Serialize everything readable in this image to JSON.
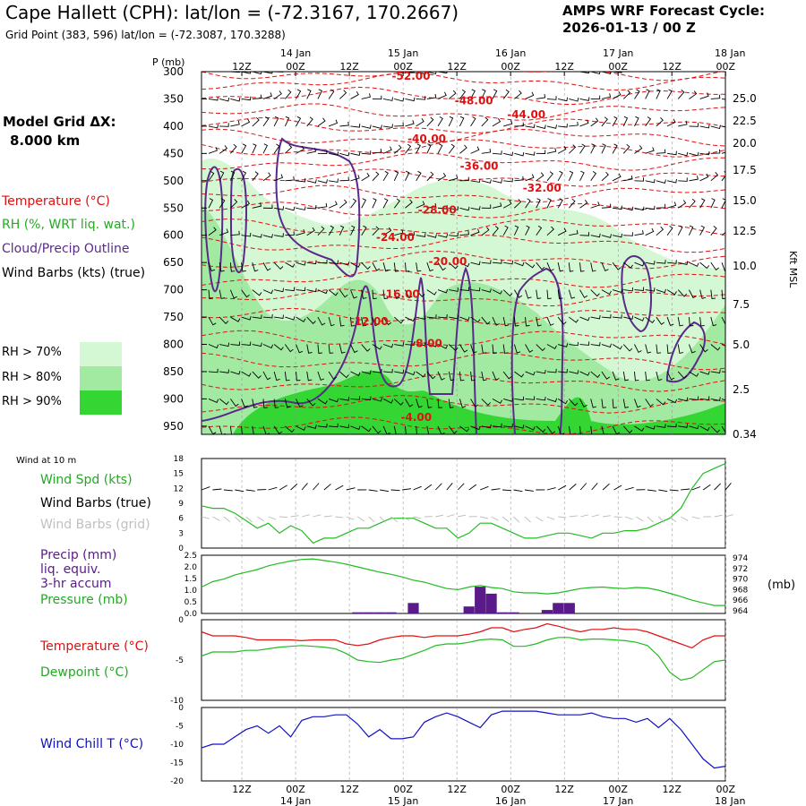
{
  "header": {
    "title": "Cape Hallett (CPH):  lat/lon = (-72.3167, 170.2667)",
    "subtitle": "Grid Point (383, 596) lat/lon = (-72.3087, 170.3288)",
    "cycle_line1": "AMPS WRF Forecast Cycle:",
    "cycle_line2": "2026-01-13 / 00  Z"
  },
  "model_grid": {
    "label": "Model Grid ΔX:",
    "value": "8.000 km"
  },
  "legend": {
    "temperature": "Temperature (°C)",
    "rh": "RH (%, WRT liq. wat.)",
    "cloud": "Cloud/Precip Outline",
    "wind": "Wind Barbs (kts) (true)",
    "rh_levels": [
      {
        "label": "RH > 70%",
        "color": "#d4f8d4"
      },
      {
        "label": "RH > 80%",
        "color": "#a2eaa2"
      },
      {
        "label": "RH > 90%",
        "color": "#34d634"
      }
    ]
  },
  "time_axis": {
    "hours": [
      "12Z",
      "00Z",
      "12Z",
      "00Z",
      "12Z",
      "00Z",
      "12Z",
      "00Z",
      "12Z",
      "00Z"
    ],
    "dates": [
      "14 Jan",
      "15 Jan",
      "16 Jan",
      "17 Jan",
      "18 Jan"
    ]
  },
  "colors": {
    "temp": "#e01010",
    "rh": "#22bb22",
    "cloud": "#5a2a8a",
    "precip": "#5a1a8a",
    "windchill": "#1010c0"
  },
  "chart_data": [
    {
      "type": "heatmap",
      "name": "cross-section",
      "ylabel": "P (mb)",
      "y2label": "Kft MSL",
      "pressure_ticks": [
        "300",
        "350",
        "400",
        "450",
        "500",
        "550",
        "600",
        "650",
        "700",
        "750",
        "800",
        "850",
        "900",
        "950"
      ],
      "height_ticks": [
        "25.0",
        "22.5",
        "20.0",
        "17.5",
        "15.0",
        "12.5",
        "10.0",
        "7.5",
        "5.0",
        "2.5",
        "0.34"
      ],
      "temperature_labels": [
        {
          "text": "-52.00",
          "t": 0.4,
          "p": 315
        },
        {
          "text": "-48.00",
          "t": 0.52,
          "p": 360
        },
        {
          "text": "-44.00",
          "t": 0.62,
          "p": 385
        },
        {
          "text": "-40.00",
          "t": 0.43,
          "p": 430
        },
        {
          "text": "-36.00",
          "t": 0.53,
          "p": 480
        },
        {
          "text": "-32.00",
          "t": 0.65,
          "p": 520
        },
        {
          "text": "-28.00",
          "t": 0.45,
          "p": 560
        },
        {
          "text": "-24.00",
          "t": 0.37,
          "p": 610
        },
        {
          "text": "-20.00",
          "t": 0.47,
          "p": 655
        },
        {
          "text": "-16.00",
          "t": 0.38,
          "p": 715
        },
        {
          "text": "-12.00",
          "t": 0.32,
          "p": 765
        },
        {
          "text": "-8.00",
          "t": 0.43,
          "p": 805
        },
        {
          "text": "-4.00",
          "t": 0.41,
          "p": 940
        }
      ]
    },
    {
      "type": "line",
      "name": "wind10m",
      "label": "Wind at 10 m",
      "series_label": "Wind Spd (kts)",
      "barbs_true": "Wind Barbs (true)",
      "barbs_grid": "Wind Barbs (grid)",
      "y_ticks": [
        "18",
        "15",
        "12",
        "9",
        "6",
        "3",
        "0"
      ],
      "ylim": [
        0,
        18
      ],
      "values": [
        8.5,
        8,
        8,
        7,
        5.5,
        4,
        5,
        3,
        4.5,
        3.5,
        1,
        2,
        2,
        3,
        4,
        4,
        5,
        6,
        6,
        6,
        5,
        4,
        4,
        2,
        3,
        5,
        5,
        4,
        3,
        2,
        2,
        2.5,
        3,
        3,
        2.5,
        2,
        3,
        3,
        3.5,
        3.5,
        4,
        5,
        6,
        8,
        12,
        15,
        16,
        17
      ]
    },
    {
      "type": "bar",
      "name": "precip-pressure",
      "precip_label1": "Precip (mm)",
      "precip_label2": "liq. equiv.",
      "precip_label3": "3-hr accum",
      "pressure_label": "Pressure (mb)",
      "y_ticks": [
        "2.5",
        "2.0",
        "1.5",
        "1.0",
        "0.5",
        "0.0"
      ],
      "ylim": [
        0,
        2.5
      ],
      "y2_ticks": [
        "974",
        "972",
        "970",
        "968",
        "966",
        "964"
      ],
      "y2lim": [
        963.5,
        974.5
      ],
      "y2_unit": "(mb)",
      "precip": [
        0,
        0,
        0,
        0,
        0,
        0,
        0,
        0,
        0,
        0,
        0,
        0,
        0,
        0,
        0.05,
        0.05,
        0.05,
        0.05,
        0,
        0.45,
        0,
        0,
        0,
        0,
        0.3,
        1.15,
        0.85,
        0.05,
        0.05,
        0,
        0,
        0.15,
        0.45,
        0.45,
        0,
        0,
        0,
        0,
        0,
        0,
        0,
        0,
        0,
        0,
        0,
        0,
        0,
        0
      ],
      "pressure": [
        968.5,
        969.5,
        970,
        970.8,
        971.3,
        971.8,
        972.5,
        973,
        973.4,
        973.7,
        973.8,
        973.5,
        973.2,
        972.8,
        972.3,
        971.8,
        971.3,
        970.9,
        970.4,
        969.8,
        969.4,
        968.8,
        968.2,
        968,
        968.5,
        968.8,
        968.4,
        968.2,
        967.6,
        967.4,
        967.4,
        967.2,
        967.4,
        967.8,
        968.2,
        968.4,
        968.5,
        968.3,
        968.2,
        968.4,
        968.3,
        967.9,
        967.3,
        966.7,
        966,
        965.5,
        965,
        965
      ]
    },
    {
      "type": "line",
      "name": "temp-dewpoint",
      "temp_label": "Temperature (°C)",
      "dew_label": "Dewpoint (°C)",
      "y_ticks": [
        "0",
        "-5",
        "-10"
      ],
      "ylim": [
        -10,
        0
      ],
      "temperature": [
        -1.5,
        -2,
        -2,
        -2,
        -2.2,
        -2.5,
        -2.5,
        -2.5,
        -2.5,
        -2.6,
        -2.5,
        -2.5,
        -2.5,
        -3,
        -3.2,
        -3,
        -2.5,
        -2.2,
        -2,
        -2,
        -2.2,
        -2,
        -2,
        -2,
        -1.8,
        -1.5,
        -1,
        -1,
        -1.5,
        -1.2,
        -1,
        -0.5,
        -0.8,
        -1.2,
        -1.5,
        -1.2,
        -1.2,
        -1,
        -1.2,
        -1.2,
        -1.5,
        -2,
        -2.5,
        -3,
        -3.5,
        -2.5,
        -2,
        -2
      ],
      "dewpoint": [
        -4.5,
        -4,
        -4,
        -4,
        -3.8,
        -3.8,
        -3.6,
        -3.4,
        -3.3,
        -3.2,
        -3.3,
        -3.4,
        -3.6,
        -4.2,
        -5,
        -5.2,
        -5.3,
        -5,
        -4.8,
        -4.3,
        -3.8,
        -3.2,
        -3,
        -3,
        -2.8,
        -2.5,
        -2.4,
        -2.5,
        -3.3,
        -3.3,
        -3,
        -2.5,
        -2.2,
        -2.2,
        -2.5,
        -2.4,
        -2.4,
        -2.5,
        -2.6,
        -2.8,
        -3.2,
        -4.5,
        -6.5,
        -7.5,
        -7.2,
        -6.2,
        -5.2,
        -5
      ]
    },
    {
      "type": "line",
      "name": "windchill",
      "label": "Wind Chill T (°C)",
      "y_ticks": [
        "0",
        "-5",
        "-10",
        "-15",
        "-20"
      ],
      "ylim": [
        -20,
        0
      ],
      "values": [
        -11,
        -10,
        -10,
        -8,
        -6,
        -5,
        -7,
        -5,
        -8,
        -3.5,
        -2.5,
        -2.5,
        -2,
        -2,
        -4.5,
        -8,
        -6,
        -8.5,
        -8.5,
        -8,
        -4,
        -2.5,
        -1.5,
        -2.5,
        -4,
        -5.5,
        -2,
        -1,
        -1,
        -1,
        -1,
        -1.5,
        -2,
        -2,
        -2,
        -1.5,
        -2.5,
        -3,
        -3,
        -4,
        -3,
        -5.5,
        -3,
        -6,
        -10,
        -14,
        -16.5,
        -16
      ]
    }
  ]
}
